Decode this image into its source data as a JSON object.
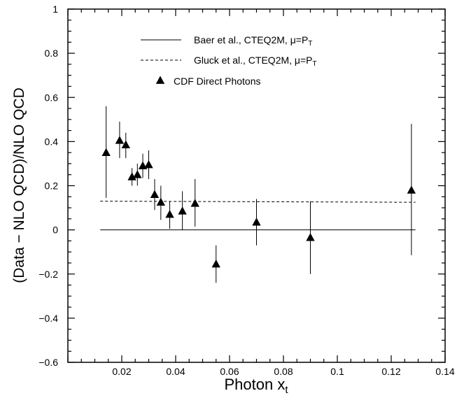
{
  "chart_data": {
    "type": "scatter",
    "title": "",
    "xlabel": "Photon x",
    "xlabel_sub": "t",
    "ylabel": "(Data − NLO QCD)/NLO QCD",
    "xlim": [
      0.0,
      0.14
    ],
    "ylim": [
      -0.6,
      1.0
    ],
    "x_ticks": [
      {
        "value": 0.02,
        "label": "0.02"
      },
      {
        "value": 0.04,
        "label": "0.04"
      },
      {
        "value": 0.06,
        "label": "0.06"
      },
      {
        "value": 0.08,
        "label": "0.08"
      },
      {
        "value": 0.1,
        "label": "0.1"
      },
      {
        "value": 0.12,
        "label": "0.12"
      },
      {
        "value": 0.14,
        "label": "0.14"
      }
    ],
    "y_ticks": [
      {
        "value": -0.6,
        "label": "−0.6"
      },
      {
        "value": -0.4,
        "label": "−0.4"
      },
      {
        "value": -0.2,
        "label": "−0.2"
      },
      {
        "value": 0,
        "label": "0"
      },
      {
        "value": 0.2,
        "label": "0.2"
      },
      {
        "value": 0.4,
        "label": "0.4"
      },
      {
        "value": 0.6,
        "label": "0.6"
      },
      {
        "value": 0.8,
        "label": "0.8"
      },
      {
        "value": 1.0,
        "label": "1"
      }
    ],
    "grid": false,
    "legend_position": "top-right",
    "legend": [
      {
        "key": "baer",
        "text": "Baer et al., CTEQ2M, μ=P",
        "sub": "T",
        "style": "solid"
      },
      {
        "key": "gluck",
        "text": "Gluck et al., CTEQ2M, μ=P",
        "sub": "T",
        "style": "dashed"
      },
      {
        "key": "cdf",
        "text": "CDF Direct Photons",
        "sub": "",
        "style": "triangle"
      }
    ],
    "lines": [
      {
        "name": "Baer et al., CTEQ2M, μ=PT",
        "style": "solid",
        "x": [
          0.012,
          0.129
        ],
        "y": [
          0.0,
          0.0
        ]
      },
      {
        "name": "Gluck et al., CTEQ2M, μ=PT",
        "style": "dashed",
        "x": [
          0.012,
          0.129
        ],
        "y": [
          0.13,
          0.125
        ]
      }
    ],
    "series": [
      {
        "name": "CDF Direct Photons",
        "marker": "triangle",
        "points": [
          {
            "x": 0.0142,
            "y": 0.35,
            "ylo": 0.145,
            "yhi": 0.56
          },
          {
            "x": 0.0192,
            "y": 0.405,
            "ylo": 0.325,
            "yhi": 0.49
          },
          {
            "x": 0.0215,
            "y": 0.385,
            "ylo": 0.325,
            "yhi": 0.44
          },
          {
            "x": 0.0238,
            "y": 0.24,
            "ylo": 0.2,
            "yhi": 0.28
          },
          {
            "x": 0.0258,
            "y": 0.25,
            "ylo": 0.2,
            "yhi": 0.3
          },
          {
            "x": 0.0278,
            "y": 0.29,
            "ylo": 0.235,
            "yhi": 0.345
          },
          {
            "x": 0.03,
            "y": 0.295,
            "ylo": 0.23,
            "yhi": 0.36
          },
          {
            "x": 0.0322,
            "y": 0.16,
            "ylo": 0.09,
            "yhi": 0.23
          },
          {
            "x": 0.0345,
            "y": 0.125,
            "ylo": 0.045,
            "yhi": 0.2
          },
          {
            "x": 0.0378,
            "y": 0.07,
            "ylo": 0.005,
            "yhi": 0.13
          },
          {
            "x": 0.0425,
            "y": 0.085,
            "ylo": 0.0,
            "yhi": 0.175
          },
          {
            "x": 0.0472,
            "y": 0.12,
            "ylo": 0.015,
            "yhi": 0.23
          },
          {
            "x": 0.055,
            "y": -0.155,
            "ylo": -0.24,
            "yhi": -0.07
          },
          {
            "x": 0.07,
            "y": 0.035,
            "ylo": -0.07,
            "yhi": 0.14
          },
          {
            "x": 0.09,
            "y": -0.035,
            "ylo": -0.2,
            "yhi": 0.13
          },
          {
            "x": 0.1275,
            "y": 0.18,
            "ylo": -0.115,
            "yhi": 0.48
          }
        ]
      }
    ]
  }
}
